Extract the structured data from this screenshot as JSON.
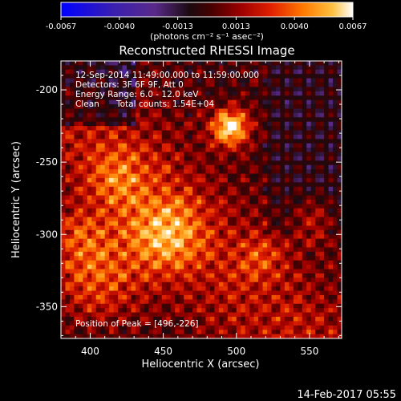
{
  "colors": {
    "background": "#000000",
    "text": "#ffffff",
    "colormap": [
      "#0000ff",
      "#3a1fb0",
      "#5a2a8a",
      "#1a0a10",
      "#4a0000",
      "#a00000",
      "#e02000",
      "#ff7a00",
      "#ffc040",
      "#ffffff"
    ]
  },
  "chart_data": {
    "type": "heatmap",
    "title": "Reconstructed RHESSI Image",
    "xlabel": "Heliocentric X (arcsec)",
    "ylabel": "Heliocentric Y (arcsec)",
    "xlim": [
      380,
      572
    ],
    "ylim": [
      -372,
      -180
    ],
    "x_ticks": [
      400,
      450,
      500,
      550
    ],
    "y_ticks": [
      -200,
      -250,
      -300,
      -350
    ],
    "colorbar": {
      "ticks": [
        "-0.0067",
        "-0.0040",
        "-0.0013",
        "0.0013",
        "0.0040",
        "0.0067"
      ],
      "range": [
        -0.0067,
        0.0067
      ],
      "units_label": "(photons cm⁻² s⁻¹ asec⁻²)",
      "colormap_name": "RHESSI blue-red-yellow-white"
    },
    "annotations": {
      "time": "12-Sep-2014 11:49:00.000 to 11:59:00.000",
      "detectors": "Detectors: 3F 6F 9F, Att 0",
      "energy": "Energy Range: 6.0 - 12.0 keV",
      "clean": "Clean",
      "counts": "Total counts: 1.54E+04",
      "peak": "Position of Peak = [496,-226]"
    },
    "peak_position": [
      496,
      -226
    ],
    "features": [
      {
        "x": 496,
        "y": -226,
        "intensity": 1.0,
        "sigma": 9
      },
      {
        "x": 452,
        "y": -300,
        "intensity": 0.55,
        "sigma": 18
      },
      {
        "x": 405,
        "y": -330,
        "intensity": 0.5,
        "sigma": 22
      },
      {
        "x": 420,
        "y": -262,
        "intensity": 0.35,
        "sigma": 16
      },
      {
        "x": 553,
        "y": -290,
        "intensity": 0.35,
        "sigma": 10
      },
      {
        "x": 392,
        "y": -300,
        "intensity": 0.3,
        "sigma": 14
      },
      {
        "x": 517,
        "y": -316,
        "intensity": 0.3,
        "sigma": 10
      }
    ]
  },
  "footer": {
    "timestamp": "14-Feb-2017 05:55"
  }
}
